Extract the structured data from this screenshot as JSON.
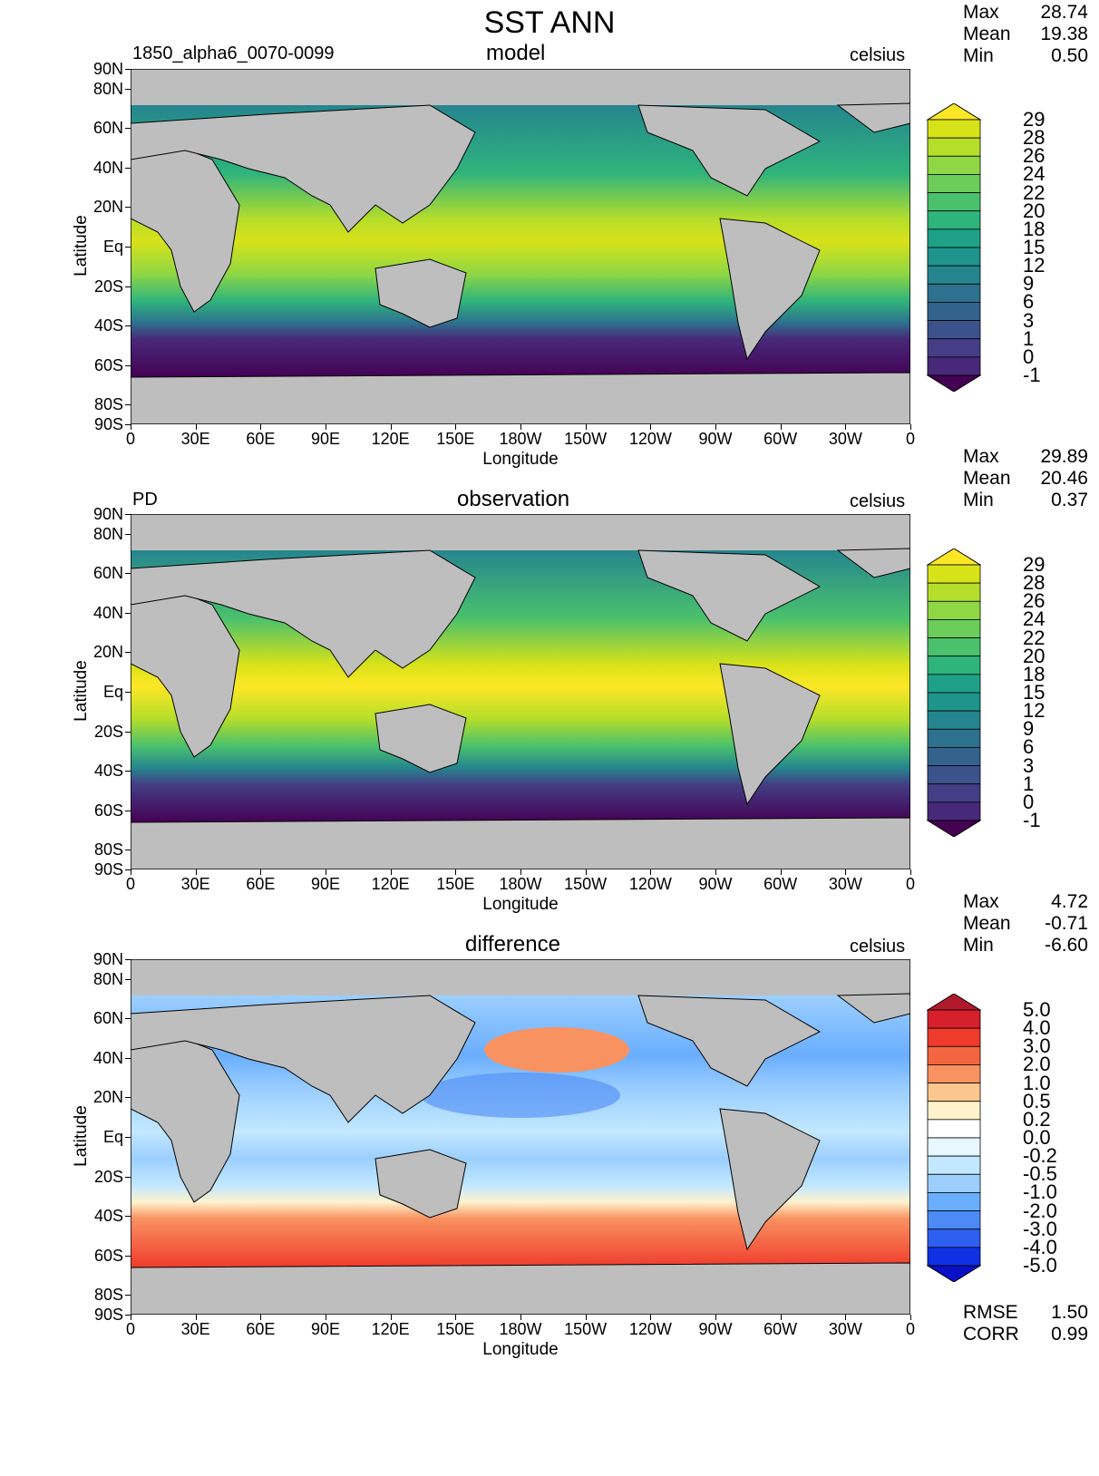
{
  "title": "SST ANN",
  "units": "celsius",
  "axes": {
    "xlabel": "Longitude",
    "ylabel": "Latitude",
    "lon_ticks": [
      "0",
      "30E",
      "60E",
      "90E",
      "120E",
      "150E",
      "180W",
      "150W",
      "120W",
      "90W",
      "60W",
      "30W",
      "0"
    ],
    "lat_ticks": [
      "90N",
      "80N",
      "60N",
      "40N",
      "20N",
      "Eq",
      "20S",
      "40S",
      "60S",
      "80S",
      "90S"
    ]
  },
  "panels": [
    {
      "name": "model",
      "case": "1850_alpha6_0070-0099",
      "stats": {
        "max_label": "Max",
        "max": "28.74",
        "mean_label": "Mean",
        "mean": "19.38",
        "min_label": "Min",
        "min": "0.50"
      }
    },
    {
      "name": "observation",
      "case": "PD",
      "stats": {
        "max_label": "Max",
        "max": "29.89",
        "mean_label": "Mean",
        "mean": "20.46",
        "min_label": "Min",
        "min": "0.37"
      }
    },
    {
      "name": "difference",
      "case": "",
      "stats": {
        "max_label": "Max",
        "max": "4.72",
        "mean_label": "Mean",
        "mean": "-0.71",
        "min_label": "Min",
        "min": "-6.60"
      },
      "extra": {
        "rmse_label": "RMSE",
        "rmse": "1.50",
        "corr_label": "CORR",
        "corr": "0.99"
      }
    }
  ],
  "colorbars": {
    "sst": {
      "labels": [
        "29",
        "28",
        "26",
        "24",
        "22",
        "20",
        "18",
        "15",
        "12",
        "9",
        "6",
        "3",
        "1",
        "0",
        "-1"
      ],
      "colors": [
        "#fde725",
        "#d8e219",
        "#b5de2b",
        "#8fd744",
        "#6ccd5a",
        "#4ac16d",
        "#2fb47c",
        "#1fa187",
        "#1f948c",
        "#25858e",
        "#2d718e",
        "#33638d",
        "#3b528b",
        "#433e85",
        "#482979",
        "#440154"
      ]
    },
    "diff": {
      "labels": [
        "5.0",
        "4.0",
        "3.0",
        "2.0",
        "1.0",
        "0.5",
        "0.2",
        "0.0",
        "-0.2",
        "-0.5",
        "-1.0",
        "-2.0",
        "-3.0",
        "-4.0",
        "-5.0"
      ],
      "colors": [
        "#b2182b",
        "#d6202b",
        "#ef3b2c",
        "#f4663f",
        "#f99261",
        "#fcc78e",
        "#fff2cc",
        "#ffffff",
        "#e6f7ff",
        "#c2e8ff",
        "#9ccfff",
        "#6aaeff",
        "#4c8bf5",
        "#2d5ff0",
        "#1030e6",
        "#0a10c8"
      ]
    }
  }
}
